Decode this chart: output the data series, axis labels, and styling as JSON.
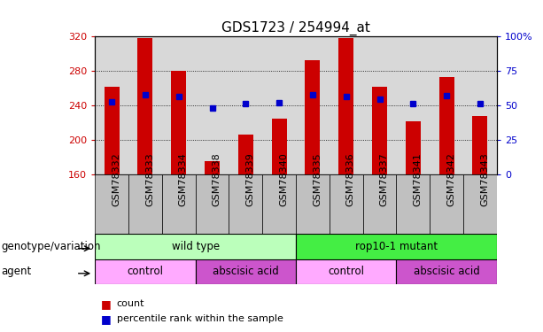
{
  "title": "GDS1723 / 254994_at",
  "samples": [
    "GSM78332",
    "GSM78333",
    "GSM78334",
    "GSM78338",
    "GSM78339",
    "GSM78340",
    "GSM78335",
    "GSM78336",
    "GSM78337",
    "GSM78341",
    "GSM78342",
    "GSM78343"
  ],
  "bar_values": [
    262,
    318,
    280,
    175,
    206,
    225,
    293,
    318,
    262,
    222,
    273,
    228
  ],
  "percentile_values": [
    244,
    252,
    250,
    237,
    242,
    243,
    252,
    250,
    247,
    242,
    251,
    242
  ],
  "bar_base": 160,
  "ylim": [
    160,
    320
  ],
  "y_ticks": [
    160,
    200,
    240,
    280,
    320
  ],
  "right_y_ticks": [
    0,
    25,
    50,
    75,
    100
  ],
  "right_y_tick_labels": [
    "0",
    "25",
    "50",
    "75",
    "100%"
  ],
  "bar_color": "#cc0000",
  "percentile_color": "#0000cc",
  "bg_color": "#d8d8d8",
  "genotype_row": [
    {
      "label": "wild type",
      "start": 0,
      "end": 6,
      "color": "#bbffbb"
    },
    {
      "label": "rop10-1 mutant",
      "start": 6,
      "end": 12,
      "color": "#44ee44"
    }
  ],
  "agent_row": [
    {
      "label": "control",
      "start": 0,
      "end": 3,
      "color": "#ffaaff"
    },
    {
      "label": "abscisic acid",
      "start": 3,
      "end": 6,
      "color": "#cc55cc"
    },
    {
      "label": "control",
      "start": 6,
      "end": 9,
      "color": "#ffaaff"
    },
    {
      "label": "abscisic acid",
      "start": 9,
      "end": 12,
      "color": "#cc55cc"
    }
  ],
  "legend_items": [
    {
      "label": "count",
      "color": "#cc0000"
    },
    {
      "label": "percentile rank within the sample",
      "color": "#0000cc"
    }
  ],
  "left_ylabel_color": "#cc0000",
  "right_ylabel_color": "#0000cc",
  "title_fontsize": 11,
  "tick_fontsize": 8,
  "label_fontsize": 8.5,
  "row_label_fontsize": 8.5,
  "legend_fontsize": 8
}
